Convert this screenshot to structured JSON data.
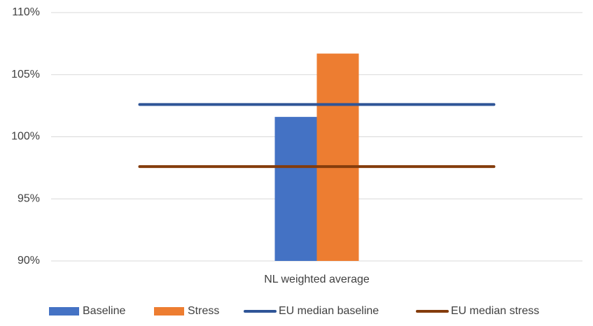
{
  "chart_data": {
    "type": "bar",
    "categories": [
      "NL weighted average"
    ],
    "series": [
      {
        "name": "Baseline",
        "type": "bar",
        "color": "#4472c4",
        "values": [
          101.6
        ]
      },
      {
        "name": "Stress",
        "type": "bar",
        "color": "#ed7d31",
        "values": [
          106.7
        ]
      },
      {
        "name": "EU median baseline",
        "type": "line",
        "color": "#2f5597",
        "values": [
          102.6
        ]
      },
      {
        "name": "EU median stress",
        "type": "line",
        "color": "#843c0c",
        "values": [
          97.6
        ]
      }
    ],
    "ylim": [
      90,
      110
    ],
    "yticks": [
      {
        "value": 90,
        "label": "90%"
      },
      {
        "value": 95,
        "label": "95%"
      },
      {
        "value": 100,
        "label": "100%"
      },
      {
        "value": 105,
        "label": "105%"
      },
      {
        "value": 110,
        "label": "110%"
      }
    ],
    "grid": true,
    "legend": "bottom"
  }
}
